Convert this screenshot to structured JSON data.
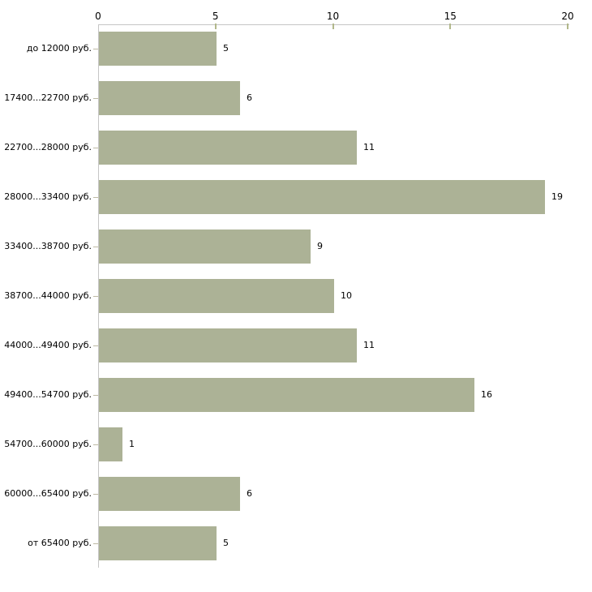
{
  "chart_data": {
    "type": "bar",
    "orientation": "horizontal",
    "title": "",
    "xlabel": "",
    "ylabel": "",
    "categories": [
      "до 12000 руб.",
      "17400...22700 руб.",
      "22700...28000 руб.",
      "28000...33400 руб.",
      "33400...38700 руб.",
      "38700...44000 руб.",
      "44000...49400 руб.",
      "49400...54700 руб.",
      "54700...60000 руб.",
      "60000...65400 руб.",
      "от 65400 руб."
    ],
    "values": [
      5,
      6,
      11,
      19,
      9,
      10,
      11,
      16,
      1,
      6,
      5
    ],
    "xlim": [
      0,
      20
    ],
    "x_ticks": [
      0,
      5,
      10,
      15,
      20
    ],
    "value_labels_shown": true,
    "grid": false,
    "legend": "none",
    "colors": {
      "bar_fill": "#acb296",
      "axis_line": "#c6c6c6",
      "x_tick_mark": "#b2b88b",
      "category_tick": "#bdb9a4",
      "text": "#000000",
      "background": "#ffffff"
    }
  }
}
